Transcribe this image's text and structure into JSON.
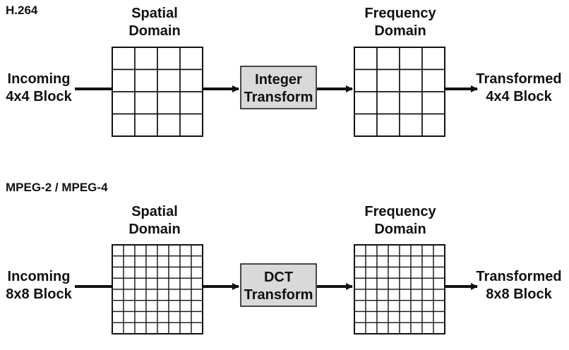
{
  "sections": [
    {
      "id": "h264",
      "title": "H.264",
      "input_label": [
        "Incoming",
        "4x4 Block"
      ],
      "spatial_label": [
        "Spatial",
        "Domain"
      ],
      "transform_label": [
        "Integer",
        "Transform"
      ],
      "frequency_label": [
        "Frequency",
        "Domain"
      ],
      "output_label": [
        "Transformed",
        "4x4 Block"
      ],
      "grid_size": 4
    },
    {
      "id": "mpeg",
      "title": "MPEG-2 / MPEG-4",
      "input_label": [
        "Incoming",
        "8x8 Block"
      ],
      "spatial_label": [
        "Spatial",
        "Domain"
      ],
      "transform_label": [
        "DCT",
        "Transform"
      ],
      "frequency_label": [
        "Frequency",
        "Domain"
      ],
      "output_label": [
        "Transformed",
        "8x8 Block"
      ],
      "grid_size": 8
    }
  ],
  "colors": {
    "line": "#111111",
    "transform_box_fill": "#d9d9d9",
    "grid_fill": "#ffffff"
  }
}
